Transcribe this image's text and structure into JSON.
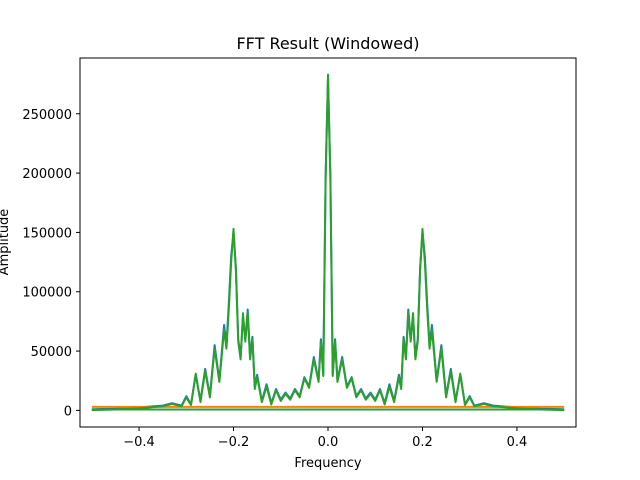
{
  "chart_data": {
    "type": "line",
    "title": "FFT Result (Windowed)",
    "xlabel": "Frequency",
    "ylabel": "Amplitude",
    "xlim": [
      -0.525,
      0.525
    ],
    "ylim": [
      -14000,
      297000
    ],
    "xticks": [
      -0.4,
      -0.2,
      0.0,
      0.2,
      0.4
    ],
    "xtick_labels": [
      "−0.4",
      "−0.2",
      "0.0",
      "0.2",
      "0.4"
    ],
    "yticks": [
      0,
      50000,
      100000,
      150000,
      200000,
      250000
    ],
    "ytick_labels": [
      "0",
      "50000",
      "100000",
      "150000",
      "200000",
      "250000"
    ],
    "grid": false,
    "legend": false,
    "series": [
      {
        "color": "#1f77b4",
        "x": [
          -0.5,
          -0.45,
          -0.4,
          -0.35,
          -0.33,
          -0.31,
          -0.3,
          -0.29,
          -0.28,
          -0.27,
          -0.26,
          -0.25,
          -0.24,
          -0.23,
          -0.22,
          -0.215,
          -0.21,
          -0.205,
          -0.2,
          -0.195,
          -0.19,
          -0.185,
          -0.18,
          -0.175,
          -0.17,
          -0.165,
          -0.16,
          -0.155,
          -0.15,
          -0.14,
          -0.13,
          -0.12,
          -0.11,
          -0.1,
          -0.09,
          -0.08,
          -0.07,
          -0.06,
          -0.05,
          -0.04,
          -0.03,
          -0.02,
          -0.015,
          -0.01,
          -0.005,
          0.0,
          0.005,
          0.01,
          0.015,
          0.02,
          0.03,
          0.04,
          0.05,
          0.06,
          0.07,
          0.08,
          0.09,
          0.1,
          0.11,
          0.12,
          0.13,
          0.14,
          0.15,
          0.155,
          0.16,
          0.165,
          0.17,
          0.175,
          0.18,
          0.185,
          0.19,
          0.195,
          0.2,
          0.205,
          0.21,
          0.215,
          0.22,
          0.23,
          0.24,
          0.25,
          0.26,
          0.27,
          0.28,
          0.29,
          0.3,
          0.31,
          0.33,
          0.35,
          0.4,
          0.45,
          0.5
        ],
        "y": [
          1000,
          1500,
          2500,
          4000,
          6000,
          4000,
          12000,
          5000,
          30000,
          8000,
          35000,
          12000,
          55000,
          25000,
          72000,
          55000,
          90000,
          130000,
          150000,
          120000,
          60000,
          45000,
          78000,
          60000,
          85000,
          45000,
          62000,
          20000,
          30000,
          8000,
          22000,
          6000,
          18000,
          9000,
          15000,
          10000,
          18000,
          12000,
          28000,
          20000,
          45000,
          25000,
          60000,
          30000,
          200000,
          280000,
          200000,
          30000,
          60000,
          25000,
          45000,
          20000,
          28000,
          12000,
          18000,
          10000,
          15000,
          9000,
          18000,
          6000,
          22000,
          8000,
          30000,
          20000,
          62000,
          45000,
          85000,
          60000,
          78000,
          45000,
          60000,
          120000,
          150000,
          130000,
          90000,
          55000,
          72000,
          25000,
          55000,
          12000,
          35000,
          8000,
          30000,
          5000,
          12000,
          4000,
          6000,
          4000,
          2500,
          1500,
          1000
        ]
      },
      {
        "color": "#ff7f0e",
        "x": [
          -0.5,
          -0.4,
          -0.3,
          -0.2,
          -0.1,
          0.0,
          0.1,
          0.2,
          0.3,
          0.4,
          0.5
        ],
        "y": [
          3000,
          3000,
          3000,
          3000,
          3000,
          3000,
          3000,
          3000,
          3000,
          3000,
          3000
        ]
      },
      {
        "color": "#2ca02c",
        "x": [
          -0.5,
          -0.45,
          -0.4,
          -0.35,
          -0.33,
          -0.31,
          -0.3,
          -0.29,
          -0.28,
          -0.27,
          -0.26,
          -0.25,
          -0.24,
          -0.23,
          -0.22,
          -0.215,
          -0.21,
          -0.205,
          -0.2,
          -0.195,
          -0.19,
          -0.185,
          -0.18,
          -0.175,
          -0.17,
          -0.165,
          -0.16,
          -0.155,
          -0.15,
          -0.14,
          -0.13,
          -0.12,
          -0.11,
          -0.1,
          -0.09,
          -0.08,
          -0.07,
          -0.06,
          -0.05,
          -0.04,
          -0.03,
          -0.02,
          -0.015,
          -0.01,
          -0.005,
          0.0,
          0.005,
          0.01,
          0.015,
          0.02,
          0.03,
          0.04,
          0.05,
          0.06,
          0.07,
          0.08,
          0.09,
          0.1,
          0.11,
          0.12,
          0.13,
          0.14,
          0.15,
          0.155,
          0.16,
          0.165,
          0.17,
          0.175,
          0.18,
          0.185,
          0.19,
          0.195,
          0.2,
          0.205,
          0.21,
          0.215,
          0.22,
          0.23,
          0.24,
          0.25,
          0.26,
          0.27,
          0.28,
          0.29,
          0.3,
          0.31,
          0.33,
          0.35,
          0.4,
          0.45,
          0.5
        ],
        "y": [
          200,
          800,
          1800,
          3500,
          5500,
          3500,
          11000,
          4500,
          31000,
          7000,
          33000,
          11000,
          52000,
          24000,
          68000,
          52000,
          85000,
          125000,
          153000,
          118000,
          58000,
          43000,
          82000,
          58000,
          83000,
          43000,
          60000,
          18000,
          28000,
          7000,
          20000,
          5000,
          17000,
          8000,
          14000,
          9000,
          17000,
          11000,
          27000,
          19000,
          43000,
          24000,
          58000,
          29000,
          195000,
          283000,
          195000,
          29000,
          58000,
          24000,
          43000,
          19000,
          27000,
          11000,
          17000,
          9000,
          14000,
          8000,
          17000,
          5000,
          20000,
          7000,
          28000,
          18000,
          60000,
          43000,
          83000,
          58000,
          82000,
          43000,
          58000,
          118000,
          153000,
          125000,
          85000,
          52000,
          68000,
          24000,
          52000,
          11000,
          33000,
          7000,
          31000,
          4500,
          11000,
          3500,
          5500,
          3500,
          1800,
          800,
          200
        ]
      },
      {
        "color": "#2ca02c",
        "x": [
          -0.5,
          0.5
        ],
        "y": [
          800,
          800
        ]
      }
    ]
  }
}
